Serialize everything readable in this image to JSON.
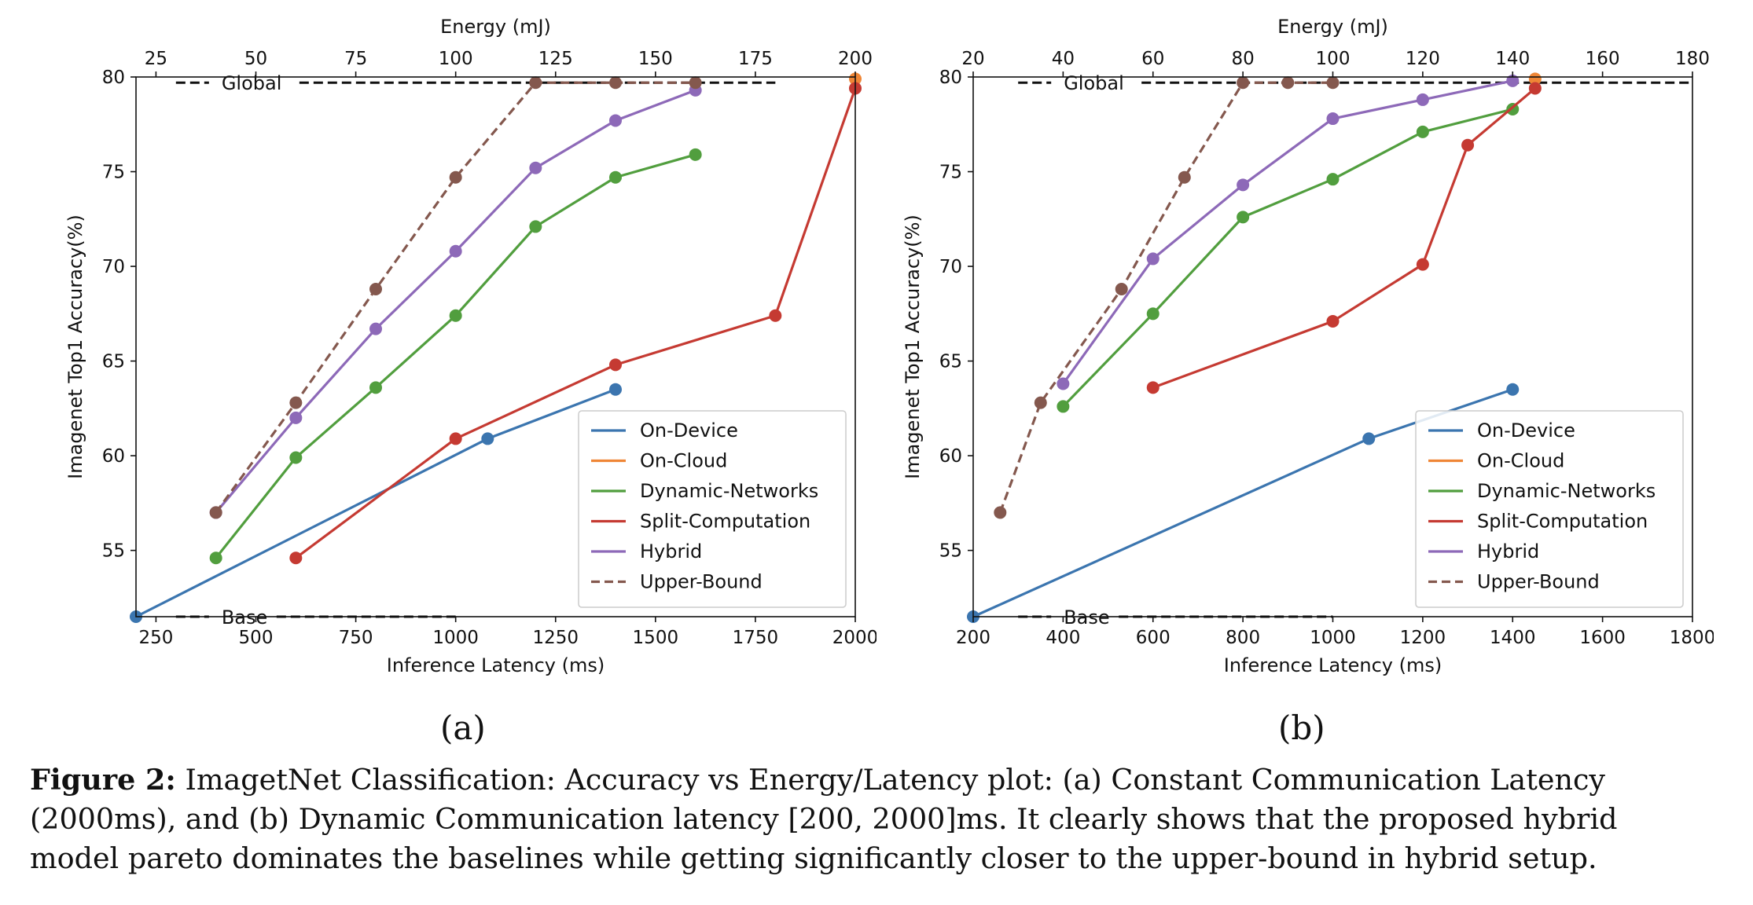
{
  "colors": {
    "On-Device": "#3b75af",
    "On-Cloud": "#ef8636",
    "Dynamic-Networks": "#519e3e",
    "Split-Computation": "#c53a32",
    "Hybrid": "#8d69b8",
    "Upper-Bound": "#84584e",
    "reference": "#111111"
  },
  "chart_data": [
    {
      "type": "line",
      "xlabel": "Inference Latency (ms)",
      "x2label": "Energy (mJ)",
      "ylabel": "Imagenet Top1 Accuracy(%)",
      "xlim": [
        200,
        2000
      ],
      "x2lim": [
        20,
        200
      ],
      "ylim": [
        51.5,
        80
      ],
      "xticks": [
        250,
        500,
        750,
        1000,
        1250,
        1500,
        1750,
        2000
      ],
      "x2ticks": [
        25,
        50,
        75,
        100,
        125,
        150,
        175,
        200
      ],
      "yticks": [
        55,
        60,
        65,
        70,
        75,
        80
      ],
      "legend_position": "lower-right",
      "reference_lines": [
        {
          "name": "Global",
          "y": 79.7,
          "x_start": 300,
          "x_end": 1800
        },
        {
          "name": "Base",
          "y": 51.5,
          "x_start": 300,
          "x_end": 1000
        }
      ],
      "series": [
        {
          "name": "On-Device",
          "x": [
            200,
            1080,
            1400
          ],
          "y": [
            51.5,
            60.9,
            63.5
          ]
        },
        {
          "name": "On-Cloud",
          "x": [
            2000
          ],
          "y": [
            79.9
          ]
        },
        {
          "name": "Dynamic-Networks",
          "x": [
            400,
            600,
            800,
            1000,
            1200,
            1400,
            1600
          ],
          "y": [
            54.6,
            59.9,
            63.6,
            67.4,
            72.1,
            74.7,
            75.9
          ]
        },
        {
          "name": "Split-Computation",
          "x": [
            600,
            1000,
            1400,
            1800,
            2000
          ],
          "y": [
            54.6,
            60.9,
            64.8,
            67.4,
            79.4
          ]
        },
        {
          "name": "Hybrid",
          "x": [
            400,
            600,
            800,
            1000,
            1200,
            1400,
            1600
          ],
          "y": [
            57.0,
            62.0,
            66.7,
            70.8,
            75.2,
            77.7,
            79.3
          ]
        },
        {
          "name": "Upper-Bound",
          "x": [
            400,
            600,
            800,
            1000,
            1200,
            1400,
            1600
          ],
          "y": [
            57.0,
            62.8,
            68.8,
            74.7,
            79.7,
            79.7,
            79.7
          ],
          "dashed": true
        }
      ]
    },
    {
      "type": "line",
      "xlabel": "Inference Latency (ms)",
      "x2label": "Energy (mJ)",
      "ylabel": "Imagenet Top1 Accuracy(%)",
      "xlim": [
        200,
        1800
      ],
      "x2lim": [
        20,
        180
      ],
      "ylim": [
        51.5,
        80
      ],
      "xticks": [
        200,
        400,
        600,
        800,
        1000,
        1200,
        1400,
        1600,
        1800
      ],
      "x2ticks": [
        20,
        40,
        60,
        80,
        100,
        120,
        140,
        160,
        180
      ],
      "yticks": [
        55,
        60,
        65,
        70,
        75,
        80
      ],
      "legend_position": "lower-right",
      "reference_lines": [
        {
          "name": "Global",
          "y": 79.7,
          "x_start": 300,
          "x_end": 1800
        },
        {
          "name": "Base",
          "y": 51.5,
          "x_start": 300,
          "x_end": 1000
        }
      ],
      "series": [
        {
          "name": "On-Device",
          "x": [
            200,
            1080,
            1400
          ],
          "y": [
            51.5,
            60.9,
            63.5
          ]
        },
        {
          "name": "On-Cloud",
          "x": [
            1450
          ],
          "y": [
            79.9
          ]
        },
        {
          "name": "Dynamic-Networks",
          "x": [
            400,
            600,
            800,
            1000,
            1200,
            1400
          ],
          "y": [
            62.6,
            67.5,
            72.6,
            74.6,
            77.1,
            78.3
          ]
        },
        {
          "name": "Split-Computation",
          "x": [
            600,
            1000,
            1200,
            1300,
            1450
          ],
          "y": [
            63.6,
            67.1,
            70.1,
            76.4,
            79.4
          ]
        },
        {
          "name": "Hybrid",
          "x": [
            400,
            600,
            800,
            1000,
            1200,
            1400
          ],
          "y": [
            63.8,
            70.4,
            74.3,
            77.8,
            78.8,
            79.8
          ]
        },
        {
          "name": "Upper-Bound",
          "x": [
            260,
            350,
            530,
            670,
            800,
            900,
            1000
          ],
          "y": [
            57.0,
            62.8,
            68.8,
            74.7,
            79.7,
            79.7,
            79.7
          ],
          "dashed": true
        }
      ]
    }
  ],
  "sublabels": [
    "(a)",
    "(b)"
  ],
  "caption": {
    "bold": "Figure 2:",
    "line1": " ImagetNet Classification: Accuracy vs Energy/Latency plot: (a) Constant Communication Latency",
    "line2": "(2000ms), and (b) Dynamic Communication latency [200, 2000]ms. It clearly shows that the proposed hybrid",
    "line3": "model pareto dominates the baselines while getting significantly closer to the upper-bound in hybrid setup."
  }
}
